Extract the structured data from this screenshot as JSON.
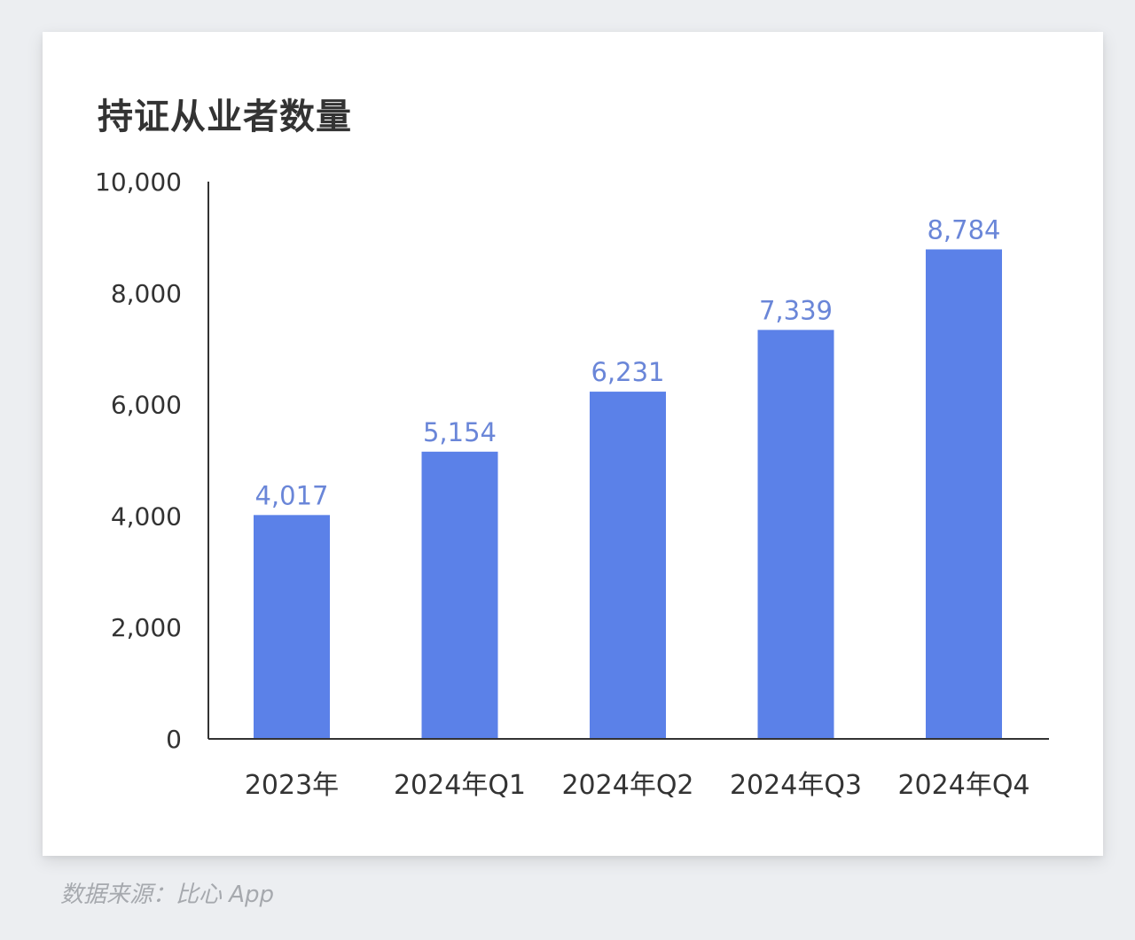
{
  "chart_data": {
    "type": "bar",
    "title": "持证从业者数量",
    "categories": [
      "2023年",
      "2024年Q1",
      "2024年Q2",
      "2024年Q3",
      "2024年Q4"
    ],
    "values": [
      4017,
      5154,
      6231,
      7339,
      8784
    ],
    "value_labels": [
      "4,017",
      "5,154",
      "6,231",
      "7,339",
      "8,784"
    ],
    "ylim": [
      0,
      10000
    ],
    "yticks": [
      0,
      2000,
      4000,
      6000,
      8000,
      10000
    ],
    "ytick_labels": [
      "0",
      "2,000",
      "4,000",
      "6,000",
      "8,000",
      "10,000"
    ],
    "xlabel": "",
    "ylabel": "",
    "grid": false,
    "legend": "none",
    "colors": {
      "bar": "#5b81e8",
      "data_label": "#6a86d8",
      "axis": "#333333"
    }
  },
  "source_text": "数据来源：比心 App"
}
